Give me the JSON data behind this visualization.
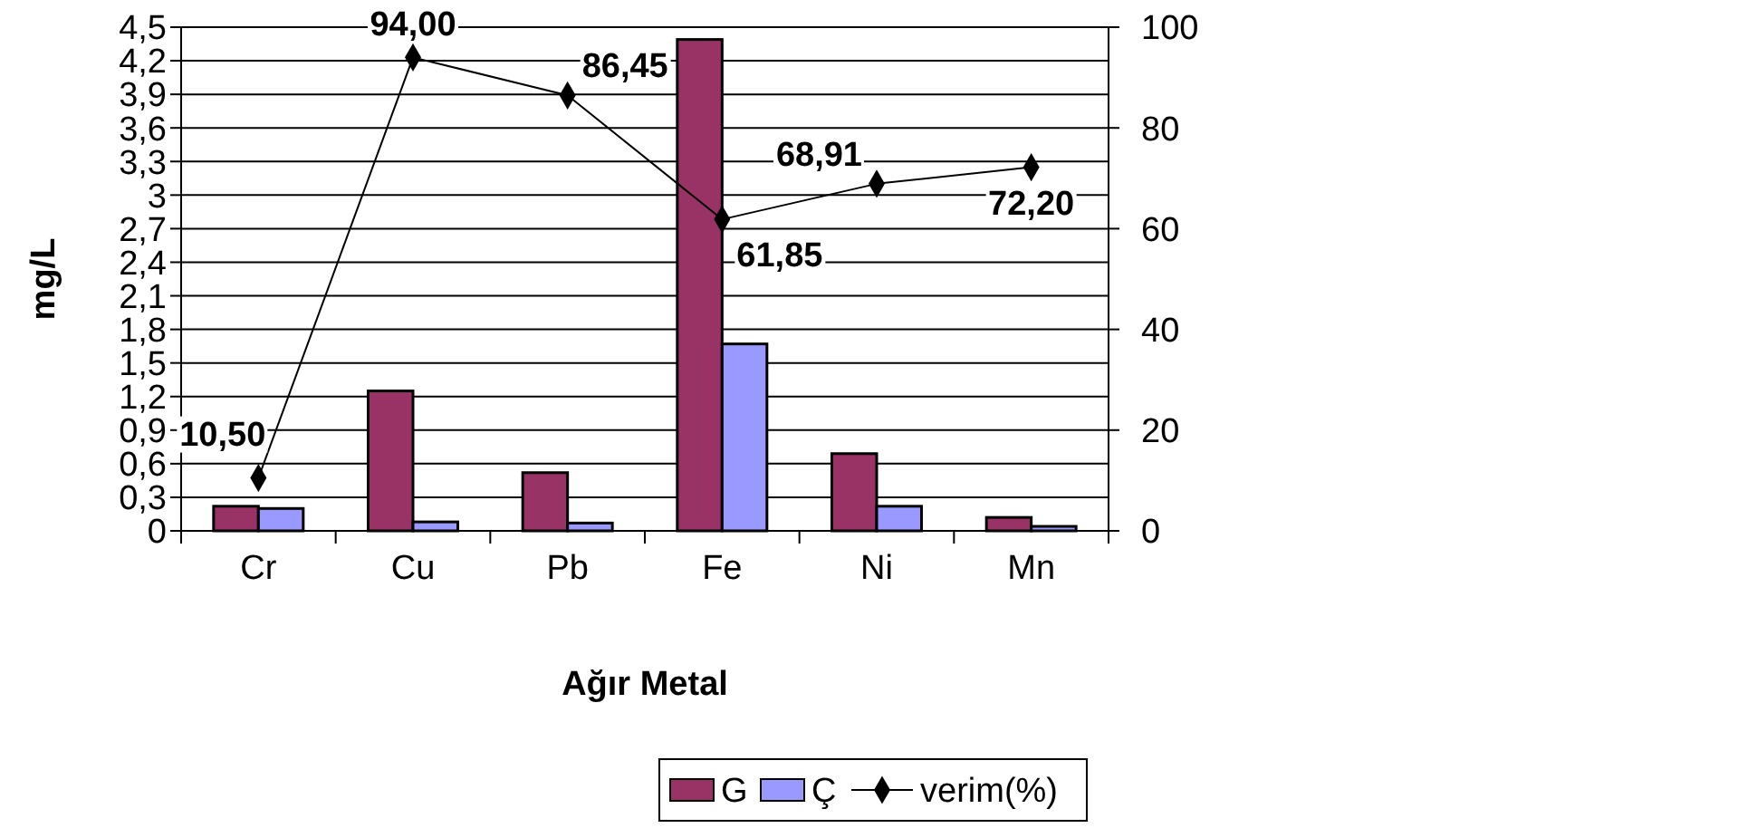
{
  "chart_data": {
    "type": "bar",
    "xlabel": "Ağır Metal",
    "ylabel": "mg/L",
    "categories": [
      "Cr",
      "Cu",
      "Pb",
      "Fe",
      "Ni",
      "Mn"
    ],
    "series": [
      {
        "name": "G",
        "color": "#993366",
        "values": [
          0.22,
          1.25,
          0.52,
          4.39,
          0.69,
          0.12
        ]
      },
      {
        "name": "Ç",
        "color": "#9999ff",
        "values": [
          0.2,
          0.08,
          0.07,
          1.67,
          0.22,
          0.04
        ]
      },
      {
        "name": "verim(%)",
        "type": "line",
        "axis": "y2",
        "color": "#000000",
        "marker": "diamond",
        "values": [
          10.5,
          94,
          86.45,
          61.85,
          68.91,
          72.2
        ],
        "value_labels": [
          "10,50",
          "94,00",
          "86,45",
          "61,85",
          "68,91",
          "72,20"
        ]
      }
    ],
    "ylim": [
      0,
      4.5
    ],
    "yticks": [
      0,
      {
        "value": 0.3,
        "label": "0,3"
      },
      {
        "value": 0.6,
        "label": "0,6"
      },
      {
        "value": 0.9,
        "label": "0,9"
      },
      {
        "value": 1.2,
        "label": "1,2"
      },
      {
        "value": 1.5,
        "label": "1,5"
      },
      {
        "value": 1.8,
        "label": "1,8"
      },
      {
        "value": 2.1,
        "label": "2,1"
      },
      {
        "value": 2.4,
        "label": "2,4"
      },
      {
        "value": 2.7,
        "label": "2,7"
      },
      3,
      {
        "value": 3.3,
        "label": "3,3"
      },
      {
        "value": 3.6,
        "label": "3,6"
      },
      {
        "value": 3.9,
        "label": "3,9"
      },
      {
        "value": 4.2,
        "label": "4,2"
      },
      {
        "value": 4.5,
        "label": "4,5"
      }
    ],
    "y2lim": [
      0,
      100
    ],
    "y2ticks": [
      0,
      20,
      40,
      60,
      80,
      100
    ],
    "grid": "y",
    "legend": "bottom"
  }
}
